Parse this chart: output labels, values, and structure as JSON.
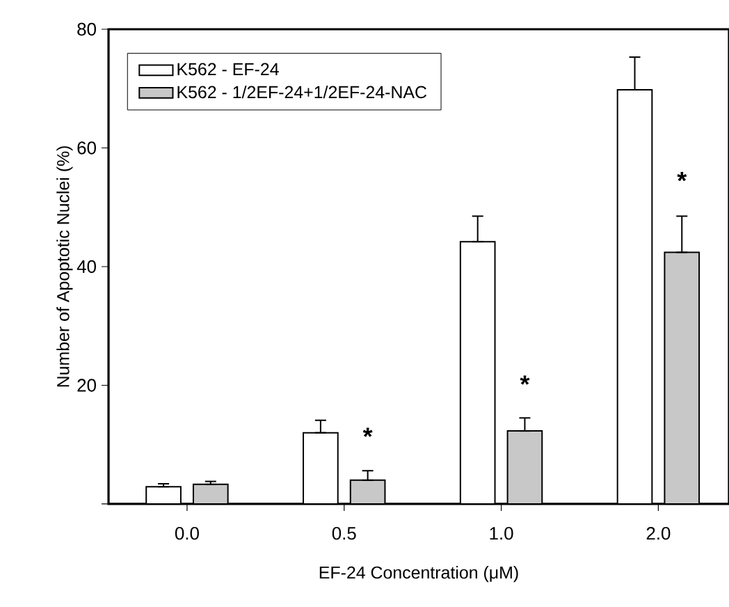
{
  "chart_data": {
    "type": "bar",
    "xlabel": "EF-24 Concentration (μM)",
    "ylabel": "Number of Apoptotic Nuclei (%)",
    "categories": [
      "0.0",
      "0.5",
      "1.0",
      "2.0"
    ],
    "series": [
      {
        "name": "K562 - EF-24",
        "color": "#ffffff",
        "values": [
          2.9,
          12.0,
          44.2,
          69.8
        ],
        "errors": [
          [
            2.9,
            3.4
          ],
          [
            12.0,
            14.1
          ],
          [
            44.2,
            48.5
          ],
          [
            69.8,
            75.3
          ]
        ]
      },
      {
        "name": "K562 - 1/2EF-24+1/2EF-24-NAC",
        "color": "#c8c8c8",
        "values": [
          3.3,
          4.0,
          12.3,
          42.4
        ],
        "errors": [
          [
            3.3,
            3.8
          ],
          [
            4.0,
            5.6
          ],
          [
            12.3,
            14.5
          ],
          [
            42.4,
            48.5
          ]
        ]
      }
    ],
    "ylim": [
      0,
      80
    ],
    "yticks": [
      {
        "value": 0,
        "label": null
      },
      20,
      40,
      60,
      80
    ],
    "annotations": [
      {
        "text": "*",
        "x": "0.5",
        "y": 11.4
      },
      {
        "text": "*",
        "x": "1.0",
        "y": 20.2
      },
      {
        "text": "*",
        "x": "2.0",
        "y": 54.5
      }
    ],
    "legend": "top left"
  }
}
